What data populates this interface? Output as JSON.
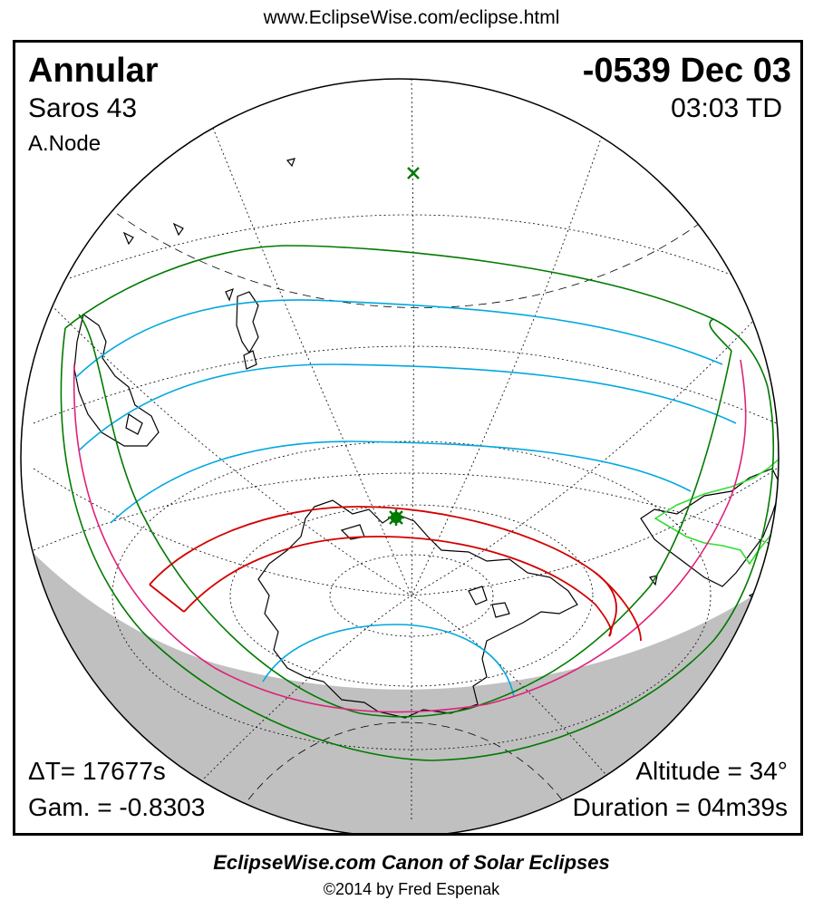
{
  "header": {
    "url": "www.EclipseWise.com/eclipse.html"
  },
  "eclipse": {
    "type": "Annular",
    "date": "-0539 Dec 03",
    "saros": "Saros  43",
    "time": "03:03 TD",
    "node": "A.Node",
    "delta_t": "ΔT=  17677s",
    "gamma": "Gam. = -0.8303",
    "altitude": "Altitude = 34°",
    "duration": "Duration = 04m39s"
  },
  "footer": {
    "canon": "EclipseWise.com Canon of Solar Eclipses",
    "copyright": "©2014 by Fred Espenak"
  },
  "map": {
    "projection": "orthographic globe",
    "colors": {
      "night_shading": "#c0c0c0",
      "penumbral_limits": "#007a00",
      "magnitude_lines": "#00a8e0",
      "annular_path": "#d40000",
      "rise_set_curves": "#e0207a",
      "coastlines": "#000000",
      "graticule": "#000000",
      "greenland_outline": "#33dd33"
    },
    "markers": [
      {
        "name": "greatest-eclipse",
        "symbol": "star"
      },
      {
        "name": "subsolar-point",
        "symbol": "cross"
      }
    ]
  }
}
